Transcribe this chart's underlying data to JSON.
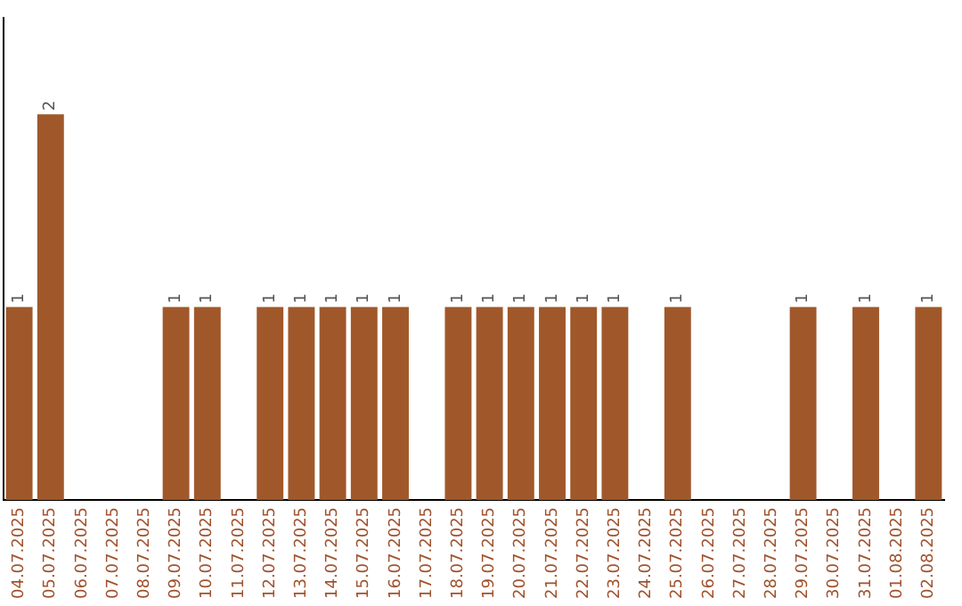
{
  "chart_data": {
    "type": "bar",
    "categories": [
      "04.07.2025",
      "05.07.2025",
      "06.07.2025",
      "07.07.2025",
      "08.07.2025",
      "09.07.2025",
      "10.07.2025",
      "11.07.2025",
      "12.07.2025",
      "13.07.2025",
      "14.07.2025",
      "15.07.2025",
      "16.07.2025",
      "17.07.2025",
      "18.07.2025",
      "19.07.2025",
      "20.07.2025",
      "21.07.2025",
      "22.07.2025",
      "23.07.2025",
      "24.07.2025",
      "25.07.2025",
      "26.07.2025",
      "27.07.2025",
      "28.07.2025",
      "29.07.2025",
      "30.07.2025",
      "31.07.2025",
      "01.08.2025",
      "02.08.2025"
    ],
    "values": [
      1,
      2,
      0,
      0,
      0,
      1,
      1,
      0,
      1,
      1,
      1,
      1,
      1,
      0,
      1,
      1,
      1,
      1,
      1,
      1,
      0,
      1,
      0,
      0,
      0,
      1,
      0,
      1,
      0,
      1
    ],
    "value_labels": [
      "1",
      "2",
      null,
      null,
      null,
      "1",
      "1",
      null,
      "1",
      "1",
      "1",
      "1",
      "1",
      null,
      "1",
      "1",
      "1",
      "1",
      "1",
      "1",
      null,
      "1",
      null,
      null,
      null,
      "1",
      null,
      "1",
      null,
      "1"
    ],
    "color": "#a0582a",
    "grid": false,
    "legend": false,
    "tick_labels": "x"
  }
}
